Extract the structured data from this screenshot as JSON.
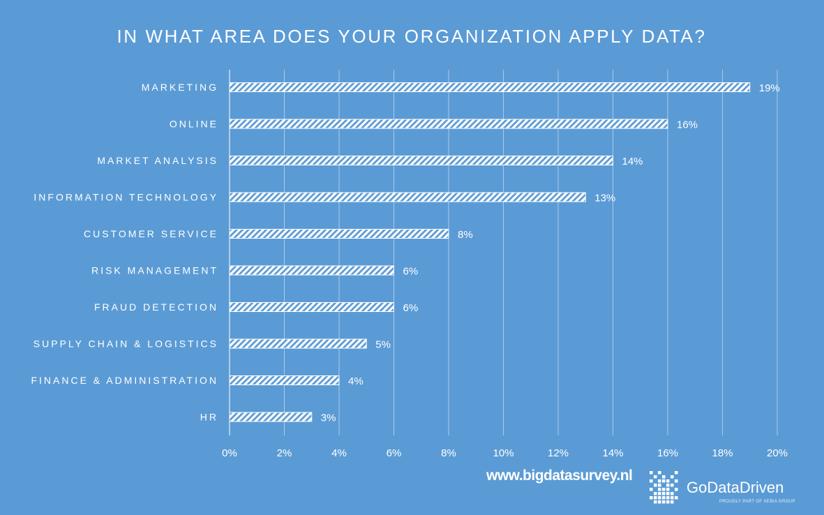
{
  "chart_data": {
    "type": "bar",
    "orientation": "horizontal",
    "title": "IN WHAT AREA DOES YOUR ORGANIZATION APPLY DATA?",
    "categories": [
      "MARKETING",
      "ONLINE",
      "MARKET ANALYSIS",
      "INFORMATION TECHNOLOGY",
      "CUSTOMER SERVICE",
      "RISK MANAGEMENT",
      "FRAUD DETECTION",
      "SUPPLY CHAIN & LOGISTICS",
      "FINANCE & ADMINISTRATION",
      "HR"
    ],
    "values": [
      19,
      16,
      14,
      13,
      8,
      6,
      6,
      5,
      4,
      3
    ],
    "value_labels": [
      "19%",
      "16%",
      "14%",
      "13%",
      "8%",
      "6%",
      "6%",
      "5%",
      "4%",
      "3%"
    ],
    "x_ticks": [
      0,
      2,
      4,
      6,
      8,
      10,
      12,
      14,
      16,
      18,
      20
    ],
    "x_tick_labels": [
      "0%",
      "2%",
      "4%",
      "6%",
      "8%",
      "10%",
      "12%",
      "14%",
      "16%",
      "18%",
      "20%"
    ],
    "xlim": [
      0,
      20
    ],
    "xlabel": "",
    "ylabel": "",
    "grid": "vertical",
    "bar_fill": "white diagonal hatch",
    "background_color": "#5b9bd5",
    "text_color": "#ffffff"
  },
  "footer": {
    "url": "www.bigdatasurvey.nl",
    "brand": "GoDataDriven",
    "brand_tagline": "PROUDLY PART OF XEBIA GROUP",
    "logo_icon": "pixel-grid-logo-icon"
  }
}
